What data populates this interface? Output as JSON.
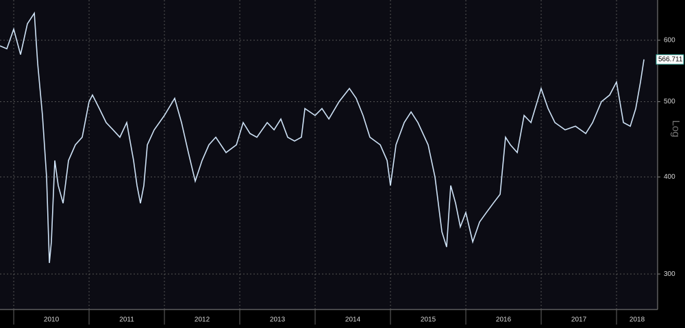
{
  "chart_data": {
    "type": "line",
    "log_scale": true,
    "grid": true,
    "y_axis_label": "Log",
    "xlim": [
      2009.818,
      2018.545
    ],
    "xticks": [
      2010,
      2011,
      2012,
      2013,
      2014,
      2015,
      2016,
      2017,
      2018
    ],
    "ylim": [
      270,
      676
    ],
    "yticks": [
      300,
      400,
      500,
      600
    ],
    "series": [
      {
        "color": "#cfe3f7",
        "x": [
          2009.818,
          2009.909,
          2010,
          2010.091,
          2010.182,
          2010.273,
          2010.318,
          2010.382,
          2010.436,
          2010.473,
          2010.5,
          2010.545,
          2010.591,
          2010.655,
          2010.727,
          2010.818,
          2010.909,
          2011,
          2011.045,
          2011.136,
          2011.227,
          2011.318,
          2011.409,
          2011.5,
          2011.591,
          2011.636,
          2011.682,
          2011.727,
          2011.773,
          2011.864,
          2012,
          2012.136,
          2012.227,
          2012.318,
          2012.409,
          2012.5,
          2012.591,
          2012.682,
          2012.818,
          2012.955,
          2013.045,
          2013.136,
          2013.227,
          2013.364,
          2013.455,
          2013.545,
          2013.636,
          2013.727,
          2013.818,
          2013.864,
          2014,
          2014.091,
          2014.182,
          2014.318,
          2014.455,
          2014.545,
          2014.636,
          2014.727,
          2014.864,
          2014.955,
          2015,
          2015.073,
          2015.182,
          2015.273,
          2015.364,
          2015.5,
          2015.591,
          2015.682,
          2015.745,
          2015.8,
          2015.864,
          2015.927,
          2016,
          2016.091,
          2016.182,
          2016.273,
          2016.364,
          2016.455,
          2016.527,
          2016.591,
          2016.682,
          2016.773,
          2016.864,
          2017,
          2017.091,
          2017.182,
          2017.318,
          2017.455,
          2017.591,
          2017.682,
          2017.8,
          2017.909,
          2018,
          2018.091,
          2018.182,
          2018.255,
          2018.318,
          2018.364
        ],
        "values": [
          590,
          585,
          620,
          575,
          630,
          650,
          560,
          480,
          400,
          310,
          330,
          420,
          390,
          370,
          420,
          440,
          450,
          500,
          510,
          490,
          470,
          460,
          450,
          470,
          420,
          390,
          370,
          390,
          440,
          460,
          480,
          505,
          470,
          430,
          395,
          420,
          440,
          450,
          430,
          440,
          470,
          455,
          450,
          470,
          460,
          475,
          450,
          445,
          450,
          490,
          480,
          490,
          475,
          500,
          520,
          505,
          480,
          450,
          440,
          420,
          390,
          440,
          470,
          485,
          470,
          440,
          400,
          340,
          325,
          390,
          370,
          345,
          360,
          330,
          350,
          360,
          370,
          380,
          450,
          440,
          430,
          480,
          470,
          520,
          490,
          470,
          460,
          465,
          455,
          470,
          500,
          510,
          530,
          470,
          465,
          490,
          530,
          566.711
        ]
      }
    ]
  }
}
